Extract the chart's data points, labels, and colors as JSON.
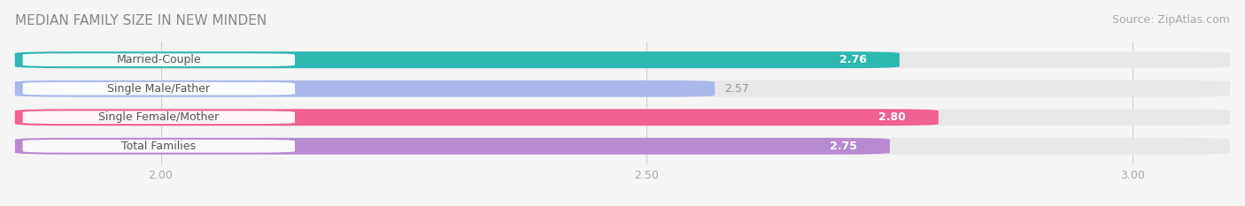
{
  "title": "MEDIAN FAMILY SIZE IN NEW MINDEN",
  "source": "Source: ZipAtlas.com",
  "categories": [
    "Married-Couple",
    "Single Male/Father",
    "Single Female/Mother",
    "Total Families"
  ],
  "values": [
    2.76,
    2.57,
    2.8,
    2.75
  ],
  "bar_colors": [
    "#2db8b0",
    "#aab8ea",
    "#f06090",
    "#b88acf"
  ],
  "value_label_colors": [
    "#ffffff",
    "#999999",
    "#ffffff",
    "#ffffff"
  ],
  "value_label_inside": [
    true,
    false,
    true,
    true
  ],
  "xlim_min": 1.85,
  "xlim_max": 3.1,
  "x_ticks": [
    2.0,
    2.5,
    3.0
  ],
  "bar_height": 0.58,
  "background_color": "#f5f5f5",
  "bar_bg_color": "#e8e8e8",
  "title_fontsize": 11,
  "source_fontsize": 9,
  "tick_fontsize": 9,
  "label_fontsize": 9,
  "value_fontsize": 9
}
